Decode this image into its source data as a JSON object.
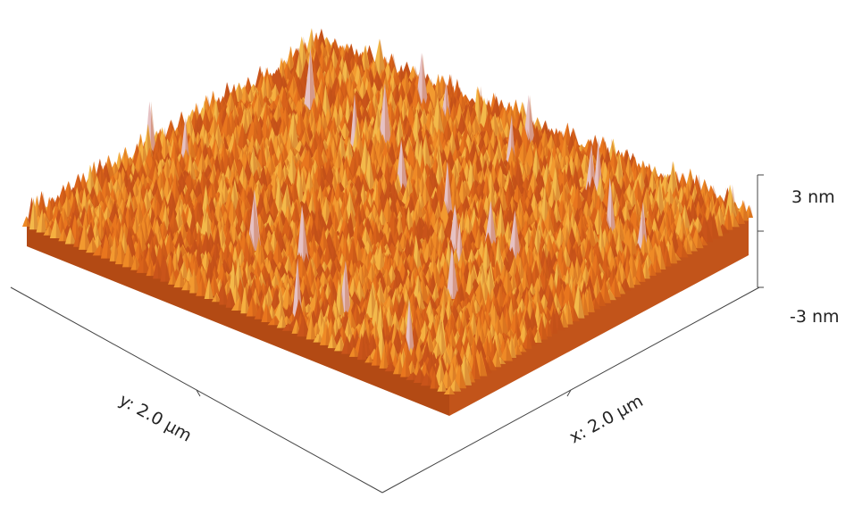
{
  "z_axis": {
    "max_label": "3 nm",
    "min_label": "-3 nm"
  },
  "x_axis": {
    "label": "x: 2.0 µm"
  },
  "y_axis": {
    "label": "y: 2.0 µm"
  }
}
